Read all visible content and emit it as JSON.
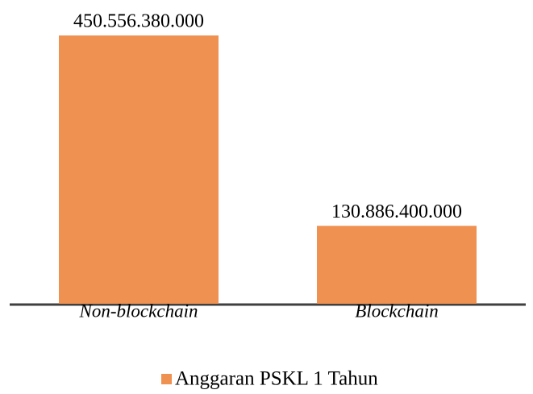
{
  "chart_data": {
    "type": "bar",
    "categories": [
      "Non-blockchain",
      "Blockchain"
    ],
    "series": [
      {
        "name": "Anggaran PSKL 1 Tahun",
        "color": "#ef9150",
        "values": [
          450556380000,
          130886400000
        ],
        "value_labels": [
          "450.556.380.000",
          "130.886.400.000"
        ]
      }
    ]
  }
}
